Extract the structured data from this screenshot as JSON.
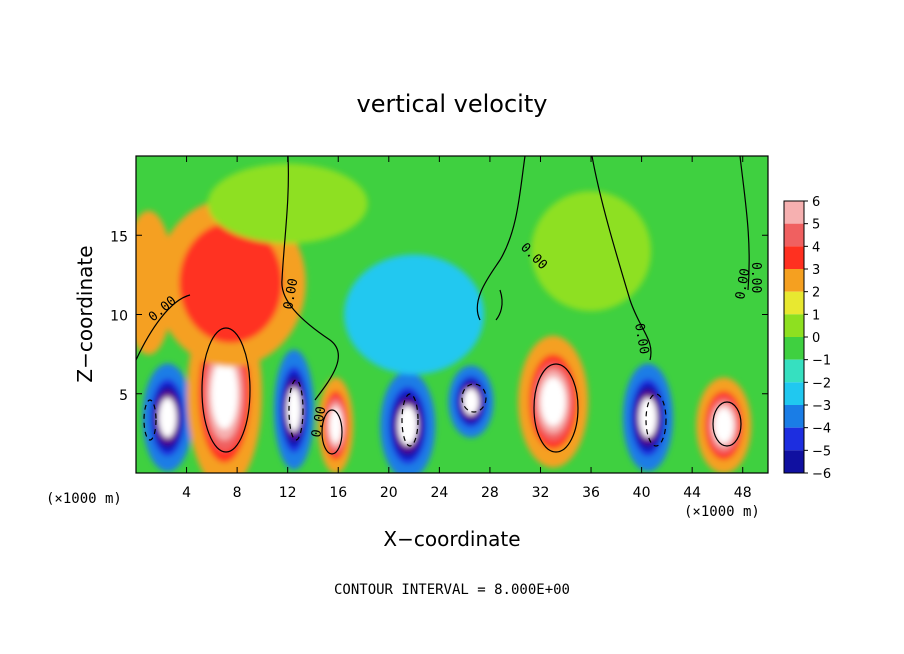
{
  "chart_data": {
    "type": "heatmap",
    "title": "vertical velocity",
    "xlabel": "X−coordinate",
    "ylabel": "Z−coordinate",
    "x_unit_label": "(×1000 m)",
    "z_unit_label": "(×1000 m)",
    "xlim": [
      0,
      50
    ],
    "ylim": [
      0,
      20
    ],
    "x_ticks": [
      "4",
      "8",
      "12",
      "16",
      "20",
      "24",
      "28",
      "32",
      "36",
      "40",
      "44",
      "48"
    ],
    "y_ticks": [
      "5",
      "10",
      "15"
    ],
    "colorbar": {
      "min": -6,
      "max": 6,
      "labels": [
        "6",
        "5",
        "4",
        "3",
        "2",
        "1",
        "0",
        "−1",
        "−2",
        "−3",
        "−4",
        "−5",
        "−6"
      ]
    },
    "contour_labels": [
      "0.00",
      "0.00",
      "0.00",
      "0.00",
      "0.00",
      "0.00",
      "0.00"
    ],
    "footer": "CONTOUR INTERVAL = 8.000E+00",
    "cells": [
      {
        "x": 2.5,
        "z": 3.5,
        "value": -6.5
      },
      {
        "x": 7.0,
        "z": 5.0,
        "value": 7.5
      },
      {
        "x": 12.5,
        "z": 4.0,
        "value": -6.5
      },
      {
        "x": 15.8,
        "z": 3.0,
        "value": 6.5
      },
      {
        "x": 21.5,
        "z": 3.0,
        "value": -6.5
      },
      {
        "x": 26.5,
        "z": 4.5,
        "value": -6.5
      },
      {
        "x": 33.0,
        "z": 4.5,
        "value": 7.0
      },
      {
        "x": 40.5,
        "z": 3.5,
        "value": -6.5
      },
      {
        "x": 46.5,
        "z": 3.0,
        "value": 6.5
      },
      {
        "x": 7.5,
        "z": 12.0,
        "value": 4.0
      },
      {
        "x": 1.0,
        "z": 12.0,
        "value": 3.0
      },
      {
        "x": 22.0,
        "z": 10.0,
        "value": -2.0
      },
      {
        "x": 36.0,
        "z": 14.0,
        "value": 0.5
      },
      {
        "x": 12.0,
        "z": 17.0,
        "value": 0.8
      }
    ]
  }
}
